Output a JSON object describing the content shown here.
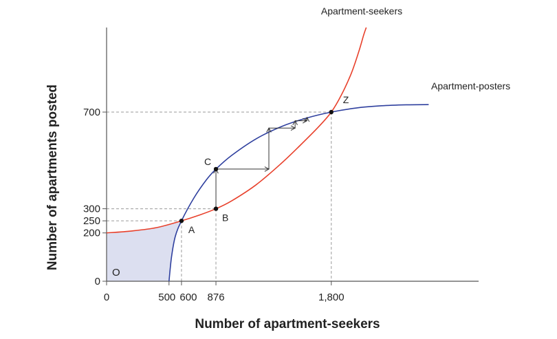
{
  "chart_data": {
    "type": "line",
    "xlabel": "Number of apartment-seekers",
    "ylabel": "Number of apartments posted",
    "xlim": [
      0,
      2980
    ],
    "ylim": [
      0,
      1050
    ],
    "xticks": [
      {
        "value": 0,
        "label": "0"
      },
      {
        "value": 500,
        "label": "500"
      },
      {
        "value": 600,
        "label": "600"
      },
      {
        "value": 876,
        "label": "876"
      },
      {
        "value": 1800,
        "label": "1,800"
      }
    ],
    "yticks": [
      {
        "value": 0,
        "label": "0"
      },
      {
        "value": 200,
        "label": "200"
      },
      {
        "value": 250,
        "label": "250"
      },
      {
        "value": 300,
        "label": "300"
      },
      {
        "value": 700,
        "label": "700"
      }
    ],
    "series": [
      {
        "name": "Apartment-seekers",
        "color": "#e8402b",
        "x": [
          0,
          200,
          400,
          600,
          750,
          876,
          1000,
          1200,
          1400,
          1550,
          1700,
          1800,
          1880,
          1960,
          2020,
          2060,
          2080
        ],
        "y": [
          200,
          208,
          222,
          250,
          275,
          300,
          332,
          400,
          488,
          562,
          640,
          700,
          770,
          860,
          950,
          1020,
          1050
        ]
      },
      {
        "name": "Apartment-posters",
        "color": "#2e3f9e",
        "x": [
          500,
          520,
          550,
          600,
          700,
          800,
          876,
          1000,
          1200,
          1400,
          1600,
          1800,
          2000,
          2200,
          2400,
          2580
        ],
        "y": [
          0,
          100,
          185,
          250,
          345,
          420,
          464,
          520,
          590,
          640,
          675,
          700,
          717,
          726,
          730,
          731
        ]
      }
    ],
    "points": [
      {
        "label": "A",
        "x": 600,
        "y": 250
      },
      {
        "label": "B",
        "x": 876,
        "y": 300
      },
      {
        "label": "C",
        "x": 876,
        "y": 464
      },
      {
        "label": "Z",
        "x": 1800,
        "y": 700
      }
    ],
    "arrows": [
      {
        "from": [
          876,
          300
        ],
        "to": [
          876,
          464
        ]
      },
      {
        "from": [
          876,
          464
        ],
        "to": [
          1300,
          464
        ]
      },
      {
        "from": [
          1300,
          464
        ],
        "to": [
          1300,
          634
        ]
      },
      {
        "from": [
          1300,
          634
        ],
        "to": [
          1510,
          634
        ]
      },
      {
        "from": [
          1510,
          634
        ],
        "to": [
          1510,
          664
        ]
      },
      {
        "from": [
          1510,
          664
        ],
        "to": [
          1605,
          664
        ]
      },
      {
        "from": [
          1605,
          664
        ],
        "to": [
          1605,
          678
        ]
      }
    ],
    "region_label": "O",
    "colors": {
      "shade": "#dcdff0",
      "guide": "#9a9a9a",
      "axis": "#555555"
    }
  }
}
